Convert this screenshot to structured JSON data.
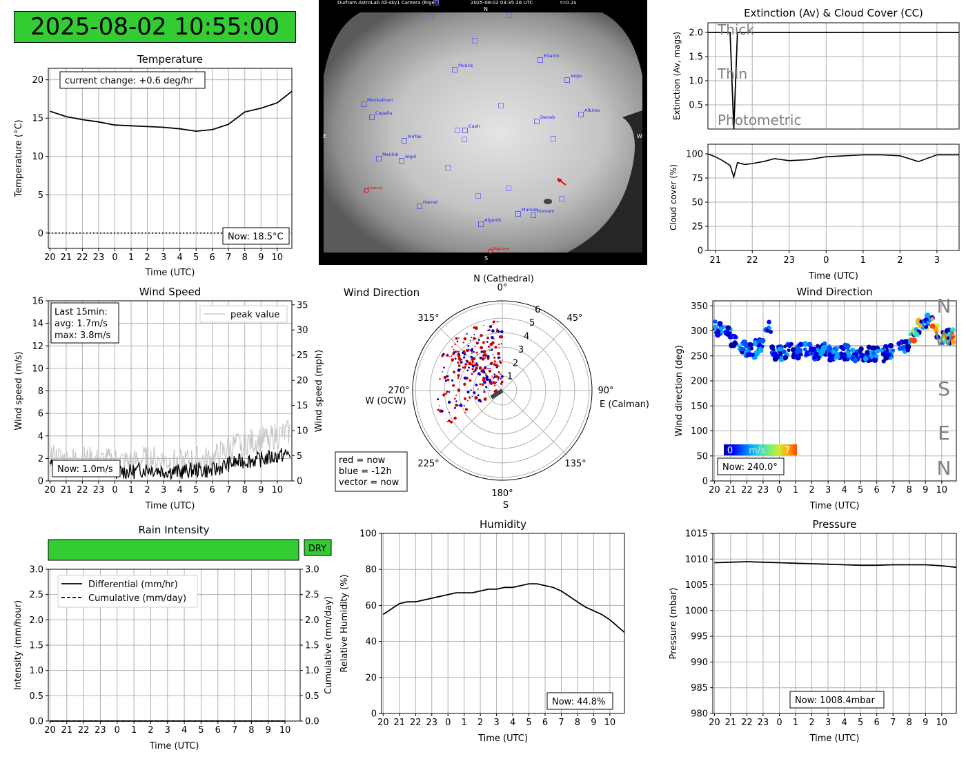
{
  "colors": {
    "good": "#33cc33",
    "line": "#000000",
    "grid": "#b0b0b0",
    "now_red": "#cc0000",
    "past_blue": "#0000cc"
  },
  "clock": "2025-08-02 10:55:00",
  "sky_camera": {
    "header_left": "Durham AstroLab All-sky1 Camera (Rigel)",
    "header_time": "2025-08-02 03:35:26 UTC",
    "header_exp": "t=0.2s",
    "compass": {
      "n": "N",
      "s": "S",
      "e": "E",
      "w": "W"
    },
    "stars": [
      "Polaris",
      "Eltanin",
      "Vega",
      "Menkalinan",
      "Capella",
      "Deneb",
      "Albireo",
      "Caph",
      "Mirfak",
      "Menkib",
      "Algol",
      "Hamal",
      "Markab",
      "Homam",
      "Algenib"
    ],
    "red_labels": [
      "Uranus",
      "Neptune"
    ]
  },
  "time_ticks": [
    "20",
    "21",
    "22",
    "23",
    "0",
    "1",
    "2",
    "3",
    "4",
    "5",
    "6",
    "7",
    "8",
    "9",
    "10"
  ],
  "temperature": {
    "title": "Temperature",
    "xlabel": "Time (UTC)",
    "ylabel": "Temperature (°C)",
    "annotation": "current change: +0.6 deg/hr",
    "now": "Now: 18.5°C",
    "yticks": [
      "0",
      "5",
      "10",
      "15",
      "20"
    ]
  },
  "extinction": {
    "title": "Extinction (Av) & Cloud Cover (CC)",
    "ylabel": "Extinction (Av, mags)",
    "yticks": [
      "0.5",
      "1.0",
      "1.5",
      "2.0"
    ],
    "labels": [
      "Thick",
      "Thin",
      "Photometric"
    ]
  },
  "cloud": {
    "ylabel": "Cloud cover (%)",
    "xlabel": "Time (UTC)",
    "yticks": [
      "0",
      "25",
      "50",
      "75",
      "100"
    ],
    "xticks": [
      "21",
      "22",
      "23",
      "0",
      "1",
      "2",
      "3"
    ]
  },
  "wind_speed": {
    "title": "Wind Speed",
    "xlabel": "Time (UTC)",
    "ylabel": "Wind speed (m/s)",
    "ylabel2": "Wind speed (mph)",
    "legend": "peak value",
    "stats": [
      "Last 15min:",
      "avg: 1.7m/s",
      "max: 3.8m/s"
    ],
    "now": "Now: 1.0m/s",
    "yticks": [
      "0",
      "2",
      "4",
      "6",
      "8",
      "10",
      "12",
      "14",
      "16"
    ],
    "yticks2": [
      "0",
      "5",
      "10",
      "15",
      "20",
      "25",
      "30",
      "35"
    ]
  },
  "wind_polar": {
    "title": "Wind Direction",
    "north": "N (Cathedral)",
    "deg0": "0°",
    "deg45": "45°",
    "deg90": "90°",
    "east": "E (Calman)",
    "deg135": "135°",
    "deg180": "180°",
    "south": "S",
    "deg225": "225°",
    "deg270": "270°",
    "west": "W (OCW)",
    "deg315": "315°",
    "rticks": [
      "1",
      "2",
      "3",
      "4",
      "5",
      "6"
    ],
    "key": [
      "red = now",
      "blue = -12h",
      "vector = now"
    ]
  },
  "wind_dir": {
    "title": "Wind Direction",
    "xlabel": "Time (UTC)",
    "ylabel": "Wind direction (deg)",
    "now": "Now: 240.0°",
    "yticks": [
      "0",
      "50",
      "100",
      "150",
      "200",
      "250",
      "300",
      "350"
    ],
    "compass": [
      "N",
      "W",
      "S",
      "E",
      "N"
    ],
    "cbar": {
      "min": "0",
      "unit": "m/s",
      "max": "7"
    }
  },
  "rain": {
    "title": "Rain Intensity",
    "status": "DRY",
    "xlabel": "Time (UTC)",
    "ylabel": "Intensity (mm/hour)",
    "ylabel2": "Cumulative (mm/day)",
    "legend": [
      "Differential (mm/hr)",
      "Cumulative (mm/day)"
    ],
    "yticks": [
      "0.0",
      "0.5",
      "1.0",
      "1.5",
      "2.0",
      "2.5",
      "3.0"
    ]
  },
  "humidity": {
    "title": "Humidity",
    "xlabel": "Time (UTC)",
    "ylabel": "Relative Humidity (%)",
    "now": "Now: 44.8%",
    "yticks": [
      "0",
      "20",
      "40",
      "60",
      "80",
      "100"
    ]
  },
  "pressure": {
    "title": "Pressure",
    "xlabel": "Time (UTC)",
    "ylabel": "Pressure (mbar)",
    "now": "Now: 1008.4mbar",
    "yticks": [
      "980",
      "985",
      "990",
      "995",
      "1000",
      "1005",
      "1010",
      "1015"
    ]
  },
  "chart_data": [
    {
      "type": "line",
      "title": "Temperature",
      "xlabel": "Time (UTC)",
      "ylabel": "Temperature (°C)",
      "ylim": [
        -2,
        21.5
      ],
      "x": [
        20,
        21,
        22,
        23,
        0,
        1,
        2,
        3,
        4,
        5,
        6,
        7,
        8,
        9,
        10,
        10.9
      ],
      "values": [
        15.9,
        15.2,
        14.8,
        14.5,
        14.1,
        14.0,
        13.9,
        13.8,
        13.6,
        13.3,
        13.5,
        14.2,
        15.8,
        16.3,
        17.0,
        18.5
      ]
    },
    {
      "type": "line",
      "title": "Extinction (Av) & Cloud Cover (CC)",
      "ylabel": "Extinction (Av, mags)",
      "ylim": [
        0,
        2.2
      ],
      "x": [
        20.8,
        21.4,
        21.45,
        21.5,
        21.55,
        21.6,
        22,
        23,
        0,
        1,
        2,
        3,
        3.6
      ],
      "values": [
        2.0,
        2.0,
        1.0,
        0.0,
        1.0,
        2.0,
        2.0,
        2.0,
        2.0,
        2.0,
        2.0,
        2.0,
        2.0
      ]
    },
    {
      "type": "line",
      "ylabel": "Cloud cover (%)",
      "xlabel": "Time (UTC)",
      "ylim": [
        0,
        110
      ],
      "x": [
        20.8,
        21.0,
        21.2,
        21.4,
        21.5,
        21.6,
        21.8,
        22.0,
        22.3,
        22.6,
        23.0,
        23.5,
        0,
        0.5,
        1,
        1.5,
        2,
        2.5,
        3,
        3.6
      ],
      "values": [
        100,
        97,
        93,
        88,
        76,
        91,
        89,
        90,
        92,
        95,
        93,
        94,
        97,
        98,
        99,
        99,
        98,
        92,
        99,
        99
      ]
    },
    {
      "type": "line",
      "title": "Wind Speed",
      "xlabel": "Time (UTC)",
      "ylabel": "Wind speed (m/s)",
      "ylim": [
        0,
        16
      ],
      "series": [
        {
          "values": [
            1.4,
            1.0,
            1.1,
            0.9,
            0.9,
            0.8,
            1.1,
            0.9,
            0.8,
            1.0,
            0.9,
            1.5,
            1.8,
            1.9,
            2.2
          ]
        },
        {
          "name": "peak value",
          "values": [
            2.3,
            1.8,
            2.0,
            1.7,
            1.8,
            1.6,
            2.0,
            1.8,
            1.6,
            1.9,
            1.9,
            2.9,
            3.4,
            3.6,
            4.0
          ]
        }
      ]
    },
    {
      "type": "scatter",
      "title": "Wind Direction",
      "xlabel": "Time (UTC)",
      "ylabel": "Wind direction (deg)",
      "ylim": [
        0,
        360
      ],
      "x": [
        20,
        20.5,
        21,
        21.5,
        22,
        22.5,
        23,
        23.5,
        0,
        0.5,
        1,
        1.5,
        2,
        2.5,
        3,
        3.5,
        4,
        4.5,
        5,
        5.5,
        6,
        6.5,
        7,
        7.5,
        8,
        8.5,
        9,
        9.5,
        10,
        10.5
      ],
      "values": [
        305,
        300,
        280,
        265,
        262,
        268,
        305,
        255,
        255,
        262,
        260,
        262,
        258,
        262,
        256,
        255,
        257,
        254,
        252,
        255,
        253,
        258,
        270,
        272,
        290,
        310,
        318,
        300,
        290,
        240
      ]
    },
    {
      "type": "line",
      "title": "Rain Intensity",
      "xlabel": "Time (UTC)",
      "ylabel": "Intensity (mm/hour)",
      "ylim": [
        0,
        3
      ],
      "series": [
        {
          "name": "Differential (mm/hr)",
          "values": [
            0,
            0,
            0,
            0,
            0,
            0,
            0,
            0,
            0,
            0,
            0,
            0,
            0,
            0,
            0
          ]
        },
        {
          "name": "Cumulative (mm/day)",
          "values": [
            0,
            0,
            0,
            0,
            0,
            0,
            0,
            0,
            0,
            0,
            0,
            0,
            0,
            0,
            0
          ]
        }
      ]
    },
    {
      "type": "line",
      "title": "Humidity",
      "xlabel": "Time (UTC)",
      "ylabel": "Relative Humidity (%)",
      "ylim": [
        0,
        100
      ],
      "x": [
        20,
        20.5,
        21,
        21.5,
        22,
        22.5,
        23,
        23.5,
        0,
        0.5,
        1,
        1.5,
        2,
        2.5,
        3,
        3.5,
        4,
        4.5,
        5,
        5.5,
        6,
        6.5,
        7,
        7.5,
        8,
        8.5,
        9,
        9.5,
        10,
        10.9
      ],
      "values": [
        55,
        58,
        61,
        62,
        62,
        63,
        64,
        65,
        66,
        67,
        67,
        67,
        68,
        69,
        69,
        70,
        70,
        71,
        72,
        72,
        71,
        70,
        68,
        65,
        62,
        59,
        57,
        55,
        52,
        45
      ]
    },
    {
      "type": "line",
      "title": "Pressure",
      "xlabel": "Time (UTC)",
      "ylabel": "Pressure (mbar)",
      "ylim": [
        980,
        1015
      ],
      "x": [
        20,
        21,
        22,
        23,
        0,
        1,
        2,
        3,
        4,
        5,
        6,
        7,
        8,
        9,
        10,
        10.9
      ],
      "values": [
        1009.3,
        1009.4,
        1009.5,
        1009.4,
        1009.3,
        1009.2,
        1009.1,
        1009.0,
        1008.9,
        1008.8,
        1008.8,
        1008.9,
        1008.9,
        1008.9,
        1008.7,
        1008.4
      ]
    }
  ]
}
